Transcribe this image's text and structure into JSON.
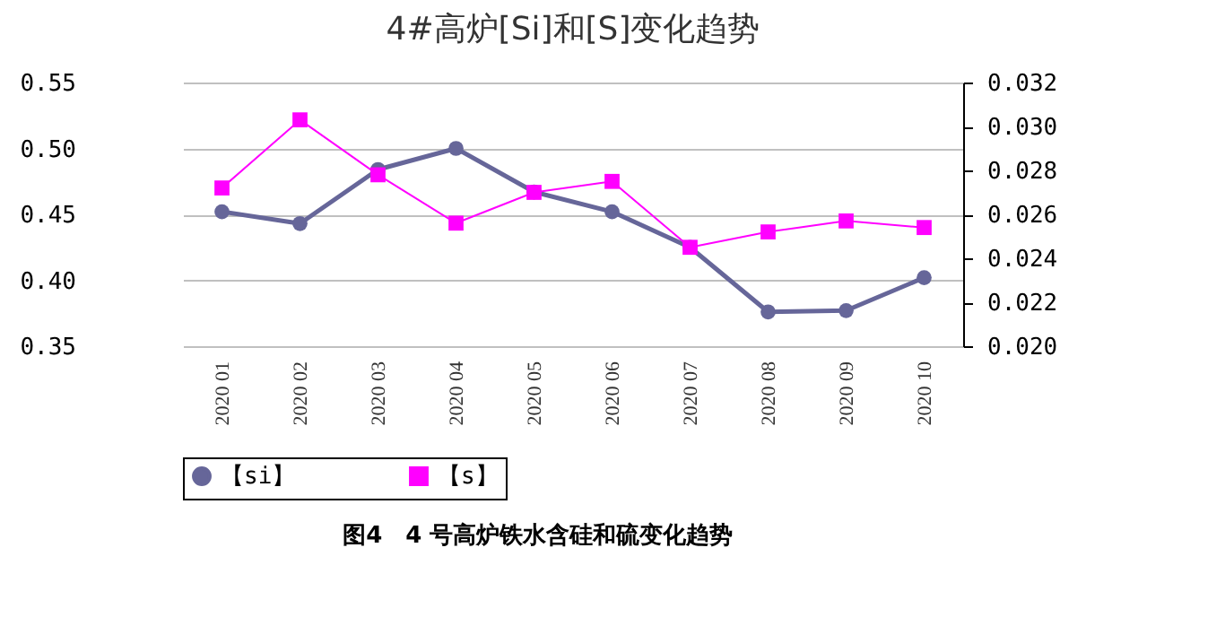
{
  "chart_data": {
    "type": "line",
    "title": "4#高炉[Si]和[S]变化趋势",
    "categories": [
      "2020 01",
      "2020 02",
      "2020 03",
      "2020 04",
      "2020 05",
      "2020 06",
      "2020 07",
      "2020 08",
      "2020 09",
      "2020 10"
    ],
    "series": [
      {
        "name": "【si】",
        "color": "#666699",
        "marker": "circle",
        "values": [
          0.452,
          0.443,
          0.484,
          0.5,
          0.467,
          0.452,
          0.425,
          0.376,
          0.377,
          0.402
        ]
      },
      {
        "name": "【s】",
        "color": "#ff00ff",
        "marker": "square",
        "axis": "y2",
        "values": [
          0.0272,
          0.0303,
          0.0278,
          0.0256,
          0.027,
          0.0275,
          0.0245,
          0.0252,
          0.0257,
          0.0254
        ]
      }
    ],
    "ylim": [
      0.35,
      0.55
    ],
    "yticks": [
      0.35,
      {
        "value": 0.4,
        "label": "0.40"
      },
      0.45,
      {
        "value": 0.5,
        "label": "0.50"
      },
      0.55
    ],
    "y2lim": [
      0.02,
      0.032
    ],
    "y2ticks": [
      {
        "value": 0.02,
        "label": "0.020"
      },
      0.022,
      0.024,
      0.026,
      0.028,
      {
        "value": 0.03,
        "label": "0.030"
      },
      0.032
    ],
    "grid": "y",
    "legend": "bottom",
    "annotations": [
      "图4　4 号高炉铁水含硅和硫变化趋势"
    ]
  }
}
